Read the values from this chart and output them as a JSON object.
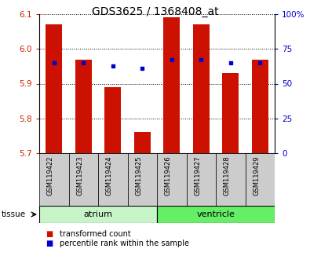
{
  "title": "GDS3625 / 1368408_at",
  "samples": [
    "GSM119422",
    "GSM119423",
    "GSM119424",
    "GSM119425",
    "GSM119426",
    "GSM119427",
    "GSM119428",
    "GSM119429"
  ],
  "red_values": [
    6.07,
    5.97,
    5.89,
    5.76,
    6.09,
    6.07,
    5.93,
    5.97
  ],
  "blue_values": [
    5.96,
    5.96,
    5.95,
    5.945,
    5.97,
    5.97,
    5.96,
    5.96
  ],
  "y_min": 5.7,
  "y_max": 6.1,
  "y_ticks": [
    5.7,
    5.8,
    5.9,
    6.0,
    6.1
  ],
  "right_y_ticks": [
    0,
    25,
    50,
    75,
    100
  ],
  "tissue_groups": [
    {
      "label": "atrium",
      "start": 0,
      "end": 4,
      "color": "#c8f5c8"
    },
    {
      "label": "ventricle",
      "start": 4,
      "end": 8,
      "color": "#66ee66"
    }
  ],
  "bar_color": "#cc1100",
  "dot_color": "#0000cc",
  "legend_red": "transformed count",
  "legend_blue": "percentile rank within the sample",
  "grid_color": "#000000",
  "bar_width": 0.55,
  "tick_label_color_left": "#cc2200",
  "tick_label_color_right": "#0000cc",
  "sample_box_color": "#cccccc"
}
